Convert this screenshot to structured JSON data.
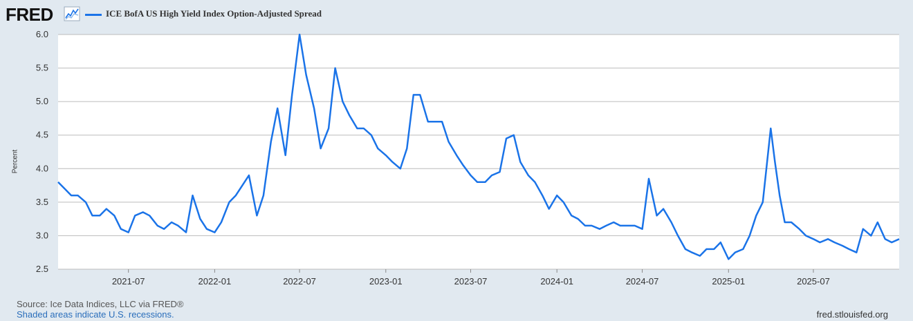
{
  "header": {
    "logo_text": "FRED",
    "logo_icon": "line-graph-icon"
  },
  "colors": {
    "series": "#1a73e8",
    "background": "#e1e9f0",
    "plot": "#ffffff",
    "grid": "#bbbbbb"
  },
  "chart_data": {
    "type": "line",
    "title": "",
    "ylabel": "Percent",
    "xlabel": "",
    "ylim": [
      2.5,
      6.0
    ],
    "yticks": [
      "2.5",
      "3.0",
      "3.5",
      "4.0",
      "4.5",
      "5.0",
      "5.5",
      "6.0"
    ],
    "xticks": [
      "2021-07",
      "2022-01",
      "2022-07",
      "2023-01",
      "2023-07",
      "2024-01",
      "2024-07",
      "2025-01",
      "2025-07"
    ],
    "xlim": [
      "2021-02-01",
      "2025-12-31"
    ],
    "grid": true,
    "legend": "top-left",
    "series": [
      {
        "name": "ICE BofA US High Yield Index Option-Adjusted Spread",
        "x": [
          "2021-02-01",
          "2021-02-15",
          "2021-03-01",
          "2021-03-15",
          "2021-04-01",
          "2021-04-15",
          "2021-05-01",
          "2021-05-15",
          "2021-06-01",
          "2021-06-15",
          "2021-07-01",
          "2021-07-15",
          "2021-08-01",
          "2021-08-15",
          "2021-09-01",
          "2021-09-15",
          "2021-10-01",
          "2021-10-15",
          "2021-11-01",
          "2021-11-15",
          "2021-12-01",
          "2021-12-15",
          "2022-01-01",
          "2022-01-15",
          "2022-02-01",
          "2022-02-15",
          "2022-03-01",
          "2022-03-15",
          "2022-04-01",
          "2022-04-15",
          "2022-05-01",
          "2022-05-15",
          "2022-06-01",
          "2022-06-15",
          "2022-07-01",
          "2022-07-15",
          "2022-08-01",
          "2022-08-15",
          "2022-09-01",
          "2022-09-15",
          "2022-10-01",
          "2022-10-15",
          "2022-11-01",
          "2022-11-15",
          "2022-12-01",
          "2022-12-15",
          "2023-01-01",
          "2023-01-15",
          "2023-02-01",
          "2023-02-15",
          "2023-03-01",
          "2023-03-15",
          "2023-04-01",
          "2023-04-15",
          "2023-05-01",
          "2023-05-15",
          "2023-06-01",
          "2023-06-15",
          "2023-07-01",
          "2023-07-15",
          "2023-08-01",
          "2023-08-15",
          "2023-09-01",
          "2023-09-15",
          "2023-10-01",
          "2023-10-15",
          "2023-11-01",
          "2023-11-15",
          "2023-12-01",
          "2023-12-15",
          "2024-01-01",
          "2024-01-15",
          "2024-02-01",
          "2024-02-15",
          "2024-03-01",
          "2024-03-15",
          "2024-04-01",
          "2024-04-15",
          "2024-05-01",
          "2024-05-15",
          "2024-06-01",
          "2024-06-15",
          "2024-07-01",
          "2024-07-15",
          "2024-08-01",
          "2024-08-15",
          "2024-09-01",
          "2024-09-15",
          "2024-10-01",
          "2024-10-15",
          "2024-11-01",
          "2024-11-15",
          "2024-12-01",
          "2024-12-15",
          "2025-01-01",
          "2025-01-15",
          "2025-02-01",
          "2025-02-15",
          "2025-03-01",
          "2025-03-15",
          "2025-04-01",
          "2025-04-10",
          "2025-04-20",
          "2025-05-01",
          "2025-05-15",
          "2025-06-01",
          "2025-06-15",
          "2025-07-01",
          "2025-07-15",
          "2025-08-01",
          "2025-08-15",
          "2025-09-01",
          "2025-09-15",
          "2025-10-01",
          "2025-10-15",
          "2025-11-01",
          "2025-11-15",
          "2025-12-01",
          "2025-12-15",
          "2025-12-31"
        ],
        "values": [
          3.8,
          3.7,
          3.6,
          3.6,
          3.5,
          3.3,
          3.3,
          3.4,
          3.3,
          3.1,
          3.05,
          3.3,
          3.35,
          3.3,
          3.15,
          3.1,
          3.2,
          3.15,
          3.05,
          3.6,
          3.25,
          3.1,
          3.05,
          3.2,
          3.5,
          3.6,
          3.75,
          3.9,
          3.3,
          3.6,
          4.4,
          4.9,
          4.2,
          5.1,
          6.0,
          5.4,
          4.9,
          4.3,
          4.6,
          5.5,
          5.0,
          4.8,
          4.6,
          4.6,
          4.5,
          4.3,
          4.2,
          4.1,
          4.0,
          4.3,
          5.1,
          5.1,
          4.7,
          4.7,
          4.7,
          4.4,
          4.2,
          4.05,
          3.9,
          3.8,
          3.8,
          3.9,
          3.95,
          4.45,
          4.5,
          4.1,
          3.9,
          3.8,
          3.6,
          3.4,
          3.6,
          3.5,
          3.3,
          3.25,
          3.15,
          3.15,
          3.1,
          3.15,
          3.2,
          3.15,
          3.15,
          3.15,
          3.1,
          3.85,
          3.3,
          3.4,
          3.2,
          3.0,
          2.8,
          2.75,
          2.7,
          2.8,
          2.8,
          2.9,
          2.65,
          2.75,
          2.8,
          3.0,
          3.3,
          3.5,
          4.6,
          4.1,
          3.6,
          3.2,
          3.2,
          3.1,
          3.0,
          2.95,
          2.9,
          2.95,
          2.9,
          2.85,
          2.8,
          2.75,
          3.1,
          3.0,
          3.2,
          2.95,
          2.9,
          2.95
        ]
      }
    ]
  },
  "footer": {
    "source": "Source: Ice Data Indices, LLC via FRED®",
    "recessions": "Shaded areas indicate U.S. recessions.",
    "url": "fred.stlouisfed.org"
  }
}
